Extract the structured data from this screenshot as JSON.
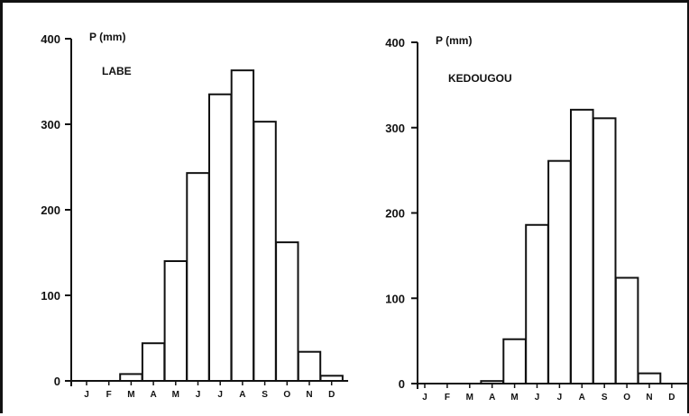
{
  "chart_data": [
    {
      "type": "bar",
      "title": "LABE",
      "ylabel": "P (mm)",
      "xlabel": "",
      "categories": [
        "J",
        "F",
        "M",
        "A",
        "M",
        "J",
        "J",
        "A",
        "S",
        "O",
        "N",
        "D"
      ],
      "values": [
        0,
        0,
        8,
        44,
        140,
        243,
        335,
        363,
        303,
        162,
        34,
        6
      ],
      "ylim": [
        0,
        400
      ],
      "yticks": [
        "0",
        "100",
        "200",
        "300",
        "400"
      ],
      "grid": false,
      "bar_fill": "#ffffff",
      "bar_stroke": "#111111"
    },
    {
      "type": "bar",
      "title": "KEDOUGOU",
      "ylabel": "P (mm)",
      "xlabel": "",
      "categories": [
        "J",
        "F",
        "M",
        "A",
        "M",
        "J",
        "J",
        "A",
        "S",
        "O",
        "N",
        "D"
      ],
      "values": [
        0,
        0,
        0,
        3,
        52,
        186,
        261,
        321,
        311,
        124,
        12,
        0
      ],
      "ylim": [
        0,
        400
      ],
      "yticks": [
        "0",
        "100",
        "200",
        "300",
        "400"
      ],
      "grid": false,
      "bar_fill": "#ffffff",
      "bar_stroke": "#111111"
    }
  ]
}
